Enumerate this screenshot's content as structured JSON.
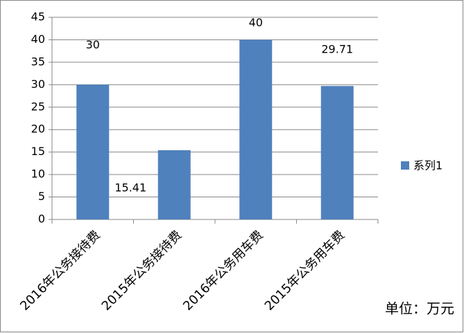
{
  "chart_data": {
    "type": "bar",
    "categories": [
      "2016年公务接待费",
      "2015年公务接待费",
      "2016年公务用车费",
      "2015年公务用车费"
    ],
    "series": [
      {
        "name": "系列1",
        "color": "#4f81bd",
        "values": [
          30,
          15.41,
          40,
          29.71
        ]
      }
    ],
    "ylim": [
      0,
      45
    ],
    "yticks": [
      0,
      5,
      10,
      15,
      20,
      25,
      30,
      35,
      40,
      45
    ],
    "grid": true,
    "legend": "right",
    "annotation": "单位：万元"
  }
}
